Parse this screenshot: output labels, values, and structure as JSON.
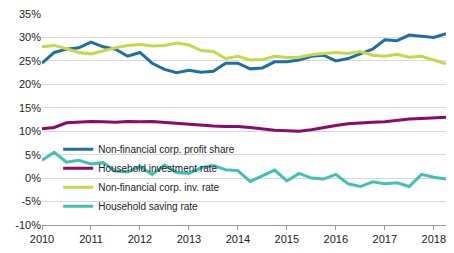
{
  "chart_data": {
    "type": "line",
    "categories": [
      "2010",
      null,
      null,
      null,
      "2011",
      null,
      null,
      null,
      "2012",
      null,
      null,
      null,
      "2013",
      null,
      null,
      null,
      "2014",
      null,
      null,
      null,
      "2015",
      null,
      null,
      null,
      "2016",
      null,
      null,
      null,
      "2017",
      null,
      null,
      null,
      "2018",
      null
    ],
    "series": [
      {
        "name": "Non-financial corp. profit share",
        "color": "#1f6fa5",
        "values": [
          24.5,
          26.8,
          27.5,
          27.8,
          29.0,
          28.0,
          27.5,
          26.0,
          26.8,
          24.5,
          23.2,
          22.5,
          23.0,
          22.6,
          22.8,
          24.5,
          24.5,
          23.3,
          23.5,
          24.8,
          24.8,
          25.2,
          26.0,
          26.2,
          25.0,
          25.5,
          26.5,
          27.5,
          29.5,
          29.3,
          30.5,
          30.3,
          30.0,
          30.8
        ]
      },
      {
        "name": "Household investment rate",
        "color": "#8b0a6b",
        "values": [
          10.5,
          10.8,
          11.8,
          12.0,
          12.1,
          12.0,
          11.9,
          12.1,
          12.0,
          12.1,
          11.9,
          11.7,
          11.5,
          11.2,
          11.1,
          11.0,
          11.0,
          10.8,
          10.5,
          10.2,
          10.1,
          10.0,
          10.3,
          10.8,
          11.2,
          11.6,
          11.8,
          11.9,
          12.0,
          12.3,
          12.6,
          12.7,
          12.8,
          13.0
        ]
      },
      {
        "name": "Non-financial corp. inv. rate",
        "color": "#c4d94a",
        "values": [
          28.0,
          28.3,
          27.6,
          26.8,
          26.5,
          27.2,
          27.8,
          28.3,
          28.5,
          28.2,
          28.3,
          28.8,
          28.4,
          27.2,
          27.0,
          25.5,
          26.0,
          25.2,
          25.3,
          26.0,
          25.7,
          25.8,
          26.3,
          26.6,
          26.8,
          26.6,
          27.0,
          26.2,
          26.0,
          26.4,
          25.8,
          26.0,
          25.2,
          24.4
        ]
      },
      {
        "name": "Household saving rate",
        "color": "#3fc2b5",
        "values": [
          3.8,
          5.5,
          3.4,
          3.8,
          3.0,
          3.3,
          1.5,
          1.3,
          2.5,
          0.8,
          2.8,
          1.2,
          1.0,
          2.2,
          2.7,
          1.8,
          1.6,
          -0.7,
          0.5,
          1.7,
          -0.6,
          1.0,
          0.0,
          -0.2,
          0.8,
          -1.2,
          -1.8,
          -0.8,
          -1.2,
          -1.0,
          -1.8,
          0.8,
          0.2,
          -0.2
        ]
      }
    ],
    "ylim": [
      -10,
      35
    ],
    "yticks": [
      {
        "value": -10,
        "label": "-10%"
      },
      {
        "value": -5,
        "label": "-5%"
      },
      {
        "value": 0,
        "label": "0%"
      },
      {
        "value": 5,
        "label": "5%"
      },
      {
        "value": 10,
        "label": "10%"
      },
      {
        "value": 15,
        "label": "15%"
      },
      {
        "value": 20,
        "label": "20%"
      },
      {
        "value": 25,
        "label": "25%"
      },
      {
        "value": 30,
        "label": "30%"
      },
      {
        "value": 35,
        "label": "35%"
      }
    ],
    "grid": true,
    "legend": "bottom"
  }
}
